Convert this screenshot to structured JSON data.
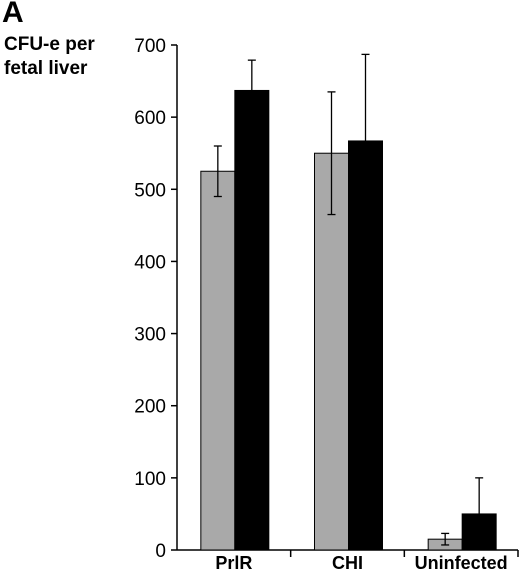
{
  "panel_label": "A",
  "chart_data": {
    "type": "bar",
    "title": "",
    "ylabel_lines": [
      "CFU-e per",
      "fetal liver"
    ],
    "xlabel": "",
    "categories": [
      "PrlR",
      "CHI",
      "Uninfected"
    ],
    "series": [
      {
        "values": [
          525,
          550,
          15
        ],
        "errors": [
          35,
          85,
          8
        ],
        "color": "#a9a9a9"
      },
      {
        "values": [
          637,
          567,
          50
        ],
        "errors": [
          42,
          120,
          50
        ],
        "color": "#000000"
      }
    ],
    "ylim": [
      0,
      700
    ],
    "yticks": [
      0,
      100,
      200,
      300,
      400,
      500,
      600,
      700
    ],
    "grid": false,
    "legend": "none"
  }
}
